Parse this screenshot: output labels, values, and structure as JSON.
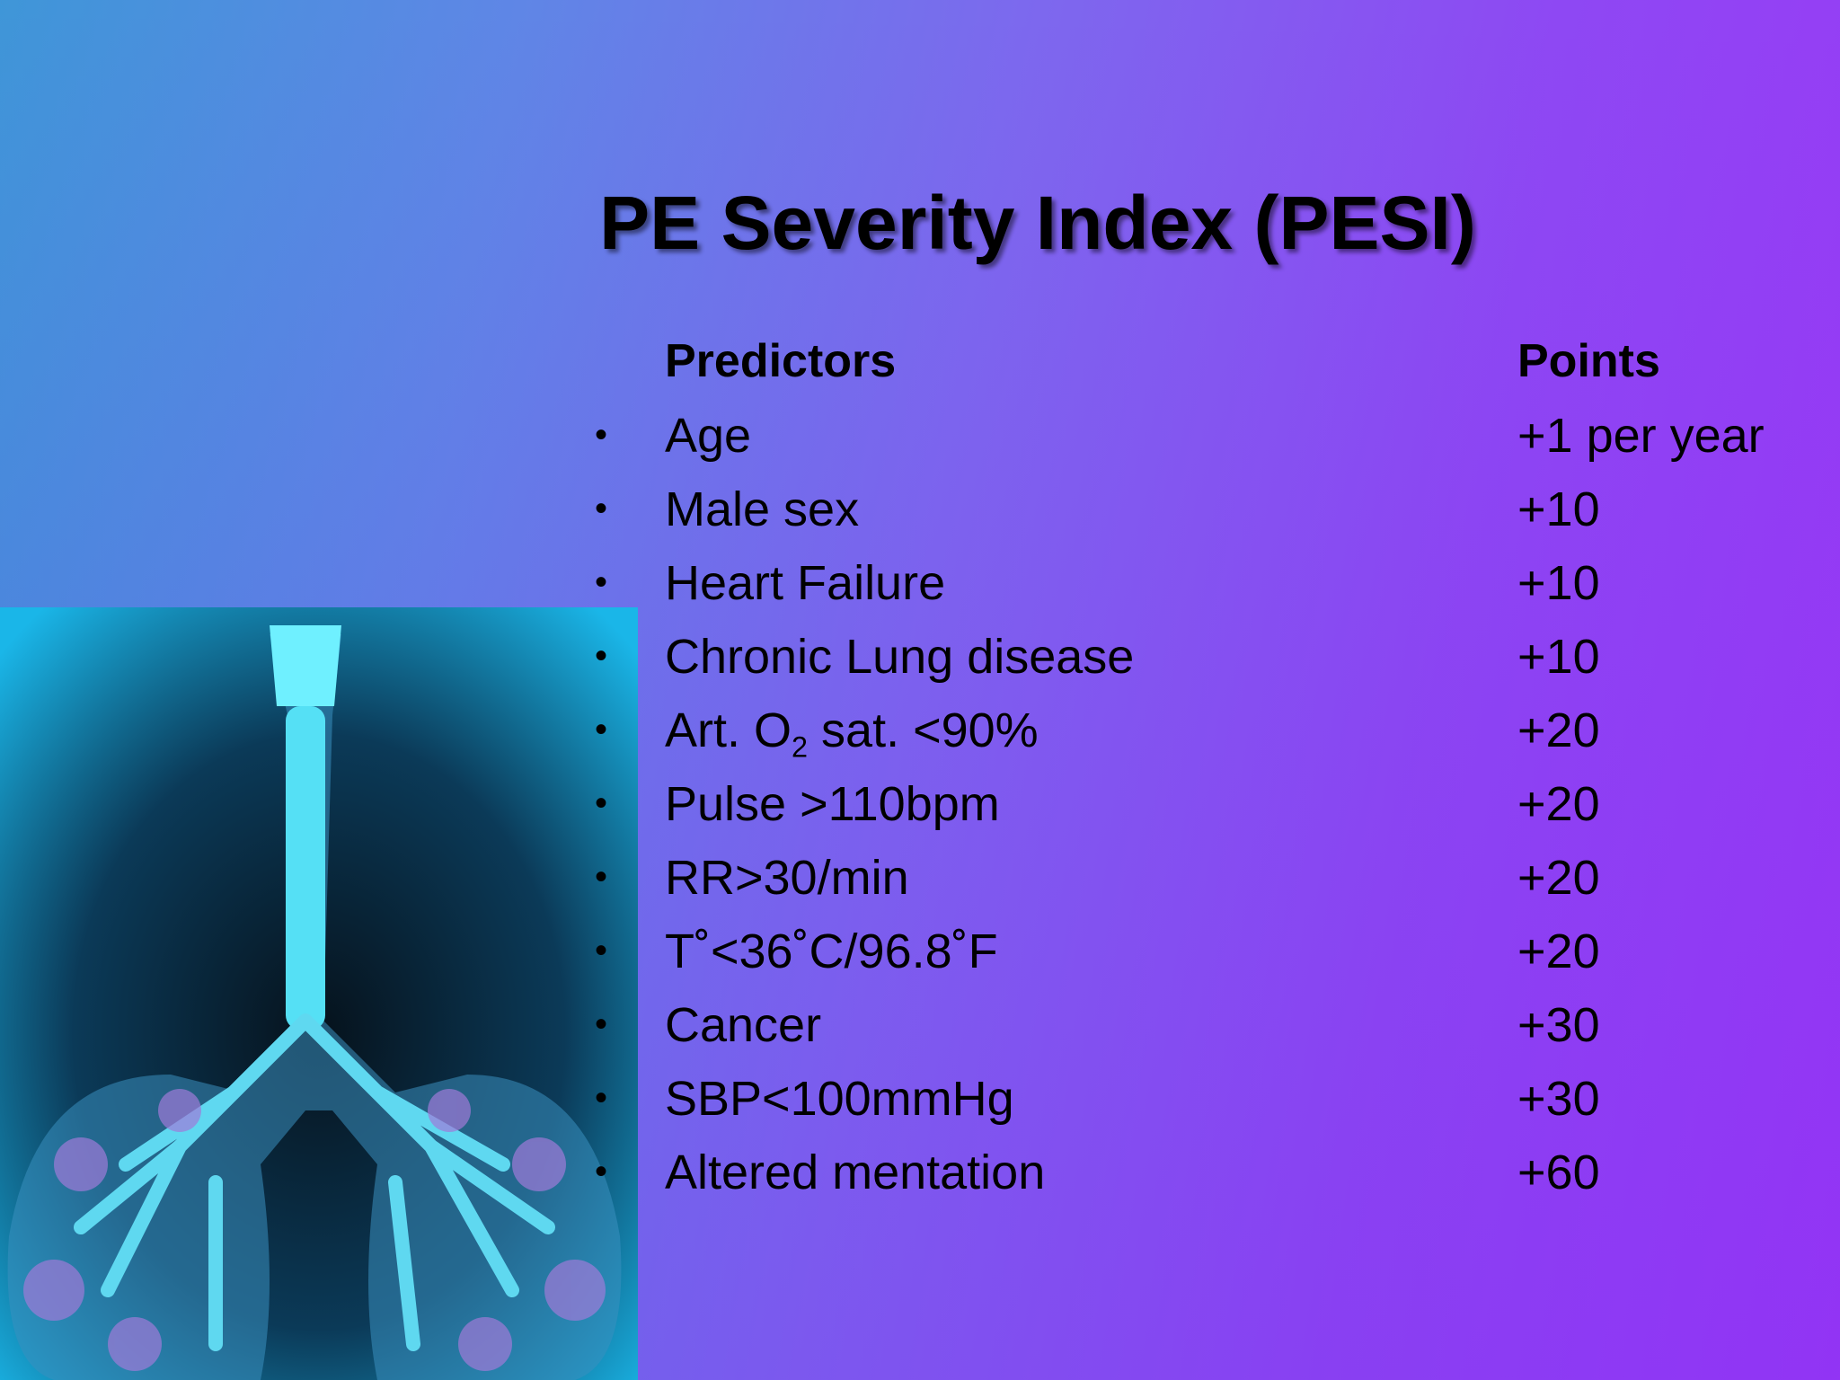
{
  "slide": {
    "title": "PE Severity Index (PESI)",
    "table": {
      "headers": [
        "Predictors",
        "Points"
      ],
      "rows": [
        {
          "predictor": "Age",
          "points": "+1 per year"
        },
        {
          "predictor": "Male sex",
          "points": "+10"
        },
        {
          "predictor": "Heart Failure",
          "points": "+10"
        },
        {
          "predictor": "Chronic Lung disease",
          "points": "+10"
        },
        {
          "predictor": [
            {
              "text": "Art. O"
            },
            {
              "sub": "2"
            },
            {
              "text": " sat. <90%"
            }
          ],
          "points": "+20"
        },
        {
          "predictor": "Pulse >110bpm",
          "points": "+20"
        },
        {
          "predictor": "RR>30/min",
          "points": "+20"
        },
        {
          "predictor": "T˚<36˚C/96.8˚F",
          "points": "+20"
        },
        {
          "predictor": "Cancer",
          "points": "+30"
        },
        {
          "predictor": "SBP<100mmHg",
          "points": "+30"
        },
        {
          "predictor": "Altered mentation",
          "points": "+60"
        }
      ]
    }
  }
}
